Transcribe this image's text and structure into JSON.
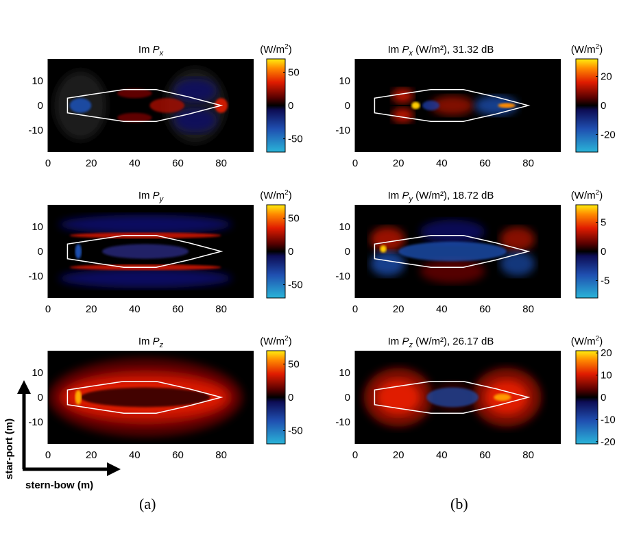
{
  "chart_data": {
    "type": "heatmap",
    "xlabel_arrow": "stern-bow (m)",
    "ylabel_arrow": "star-port (m)",
    "xlim": [
      0,
      95
    ],
    "ylim": [
      -19,
      19
    ],
    "xticks": [
      0,
      20,
      40,
      60,
      80
    ],
    "yticks": [
      10,
      0,
      -10
    ],
    "colorbar_unit": "(W/m",
    "colorbar_unit_sup": "2",
    "colorbar_unit_end": ")",
    "hull_outline": [
      [
        9,
        -3
      ],
      [
        9,
        3
      ],
      [
        20,
        4.5
      ],
      [
        35,
        6.5
      ],
      [
        50,
        6.5
      ],
      [
        65,
        3.5
      ],
      [
        80,
        0
      ],
      [
        65,
        -3.5
      ],
      [
        50,
        -6.5
      ],
      [
        35,
        -6.5
      ],
      [
        20,
        -4.5
      ]
    ],
    "column_labels": [
      "(a)",
      "(b)"
    ],
    "panels": [
      {
        "id": "a-x",
        "column": "a",
        "row": 0,
        "title_main": "Im ",
        "title_var": "P",
        "title_sub": "x",
        "title_rest": "",
        "clim": [
          -70,
          70
        ],
        "cticks": [
          50,
          0,
          -50
        ]
      },
      {
        "id": "b-x",
        "column": "b",
        "row": 0,
        "title_main": "Im ",
        "title_var": "P",
        "title_sub": "x",
        "title_rest": " (W/m²), 31.32 dB",
        "clim": [
          -32,
          32
        ],
        "cticks": [
          20,
          0,
          -20
        ]
      },
      {
        "id": "a-y",
        "column": "a",
        "row": 1,
        "title_main": "Im ",
        "title_var": "P",
        "title_sub": "y",
        "title_rest": "",
        "clim": [
          -70,
          70
        ],
        "cticks": [
          50,
          0,
          -50
        ]
      },
      {
        "id": "b-y",
        "column": "b",
        "row": 1,
        "title_main": "Im ",
        "title_var": "P",
        "title_sub": "y",
        "title_rest": " (W/m²), 18.72 dB",
        "clim": [
          -8,
          8
        ],
        "cticks": [
          5,
          0,
          -5
        ]
      },
      {
        "id": "a-z",
        "column": "a",
        "row": 2,
        "title_main": "Im ",
        "title_var": "P",
        "title_sub": "z",
        "title_rest": "",
        "clim": [
          -70,
          70
        ],
        "cticks": [
          50,
          0,
          -50
        ]
      },
      {
        "id": "b-z",
        "column": "b",
        "row": 2,
        "title_main": "Im ",
        "title_var": "P",
        "title_sub": "z",
        "title_rest": " (W/m²), 26.17 dB",
        "clim": [
          -21,
          21
        ],
        "cticks": [
          20,
          10,
          0,
          -10,
          -20
        ]
      }
    ]
  }
}
